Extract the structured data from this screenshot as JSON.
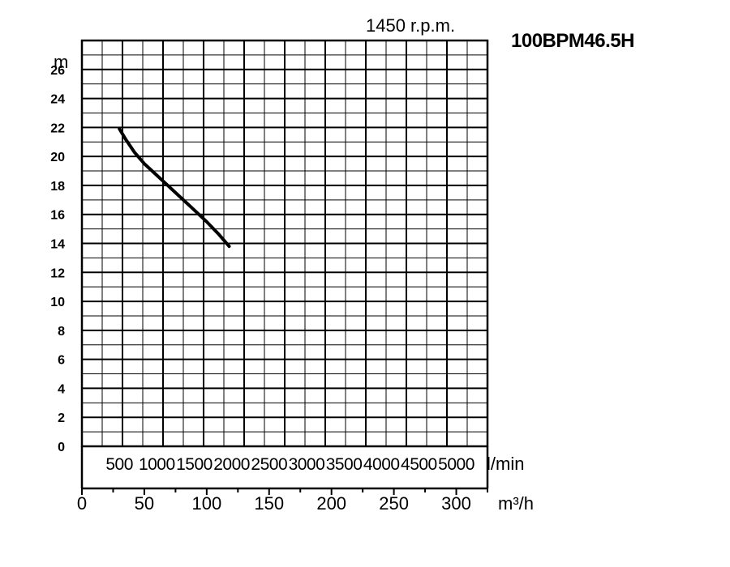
{
  "chart_data": {
    "type": "line",
    "model": "100BPM46.5H",
    "speed_label": "1450 r.p.m.",
    "y_unit": "m",
    "y_ticks": [
      "0",
      "2",
      "4",
      "6",
      "8",
      "10",
      "12",
      "14",
      "16",
      "18",
      "20",
      "22",
      "24",
      "26"
    ],
    "x_unit_lmin": "l/min",
    "x_ticks_lmin": [
      "500",
      "1000",
      "1500",
      "2000",
      "2500",
      "3000",
      "3500",
      "4000",
      "4500",
      "5000"
    ],
    "x_unit_m3h": "m³/h",
    "x_ticks_m3h": [
      "0",
      "50",
      "100",
      "150",
      "200",
      "250",
      "300"
    ],
    "ylim": [
      0,
      28
    ],
    "xlim_m3h": [
      0,
      325
    ],
    "grid": true,
    "series": [
      {
        "x_m3h": [
          30,
          35,
          42,
          50,
          60,
          70,
          80,
          90,
          100,
          110,
          118
        ],
        "y_m": [
          21.9,
          21.2,
          20.3,
          19.5,
          18.7,
          17.9,
          17.1,
          16.3,
          15.5,
          14.6,
          13.8
        ]
      }
    ]
  }
}
